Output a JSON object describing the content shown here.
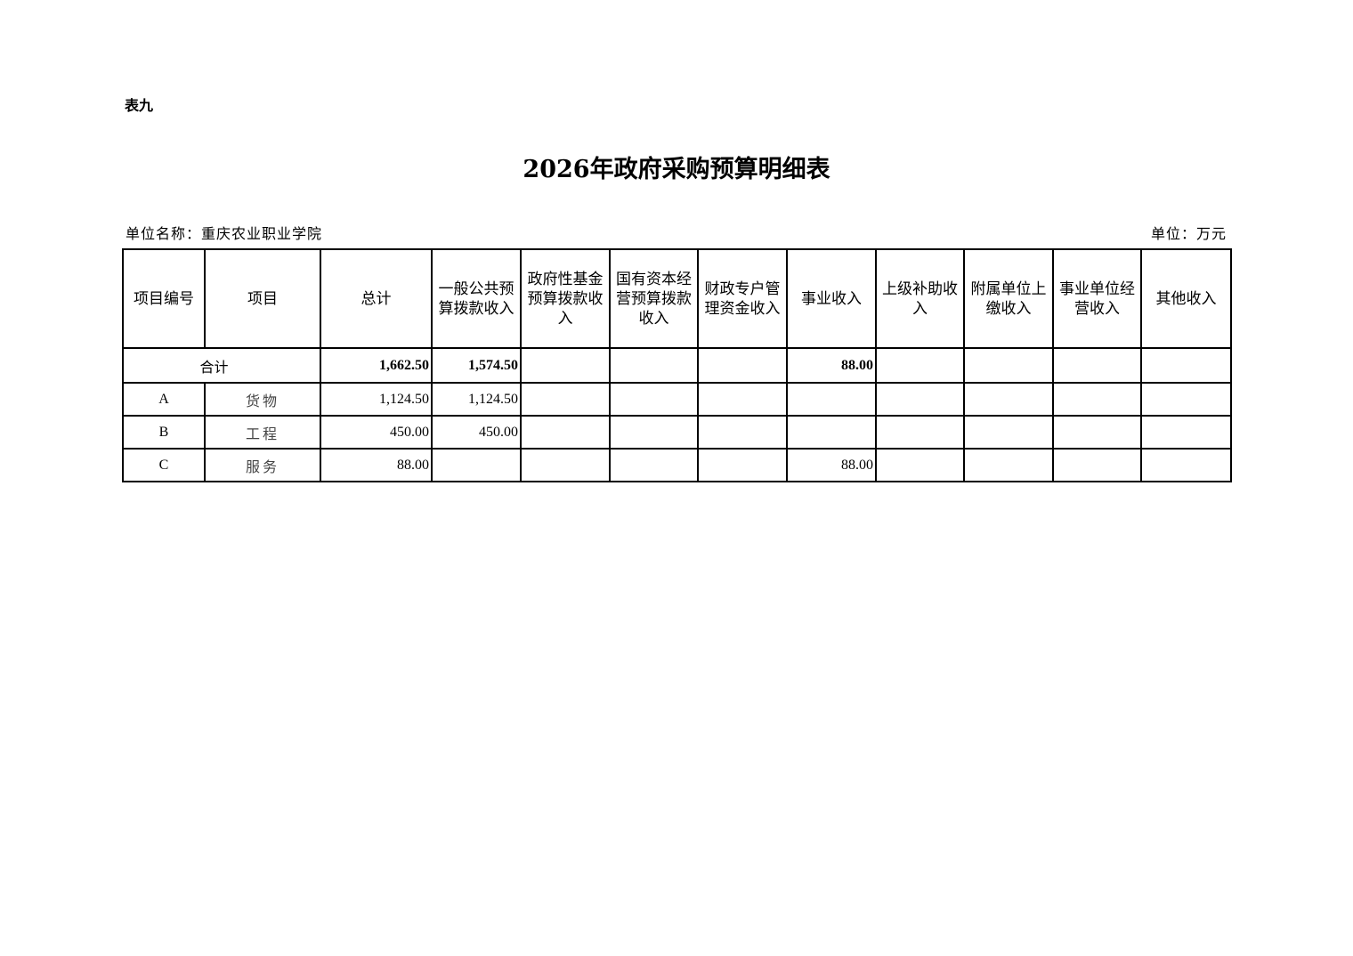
{
  "table_no": "表九",
  "title": "2026年政府采购预算明细表",
  "unit_name": "单位名称：重庆农业职业学院",
  "unit": "单位：万元",
  "columns": [
    "项目编号",
    "项目",
    "总计",
    "一般公共预算拨款收入",
    "政府性基金预算拨款收入",
    "国有资本经营预算拨款收入",
    "财政专户管理资金收入",
    "事业收入",
    "上级补助收入",
    "附属单位上缴收入",
    "事业单位经营收入",
    "其他收入"
  ],
  "total": {
    "label": "合计",
    "values": [
      "1,662.50",
      "1,574.50",
      "",
      "",
      "",
      "88.00",
      "",
      "",
      "",
      ""
    ]
  },
  "rows": [
    {
      "code": "A",
      "name": "货物",
      "values": [
        "1,124.50",
        "1,124.50",
        "",
        "",
        "",
        "",
        "",
        "",
        "",
        ""
      ]
    },
    {
      "code": "B",
      "name": "工程",
      "values": [
        "450.00",
        "450.00",
        "",
        "",
        "",
        "",
        "",
        "",
        "",
        ""
      ]
    },
    {
      "code": "C",
      "name": "服务",
      "values": [
        "88.00",
        "",
        "",
        "",
        "",
        "88.00",
        "",
        "",
        "",
        ""
      ]
    }
  ]
}
